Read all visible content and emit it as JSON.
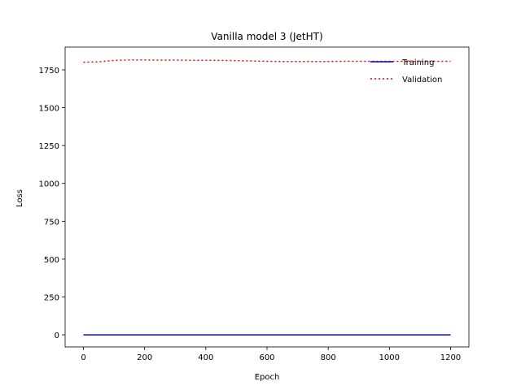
{
  "chart_data": {
    "type": "line",
    "title": "Vanilla model 3 (JetHT)",
    "xlabel": "Epoch",
    "ylabel": "Loss",
    "xlim": [
      -60,
      1260
    ],
    "ylim": [
      -80,
      1900
    ],
    "xticks": [
      0,
      200,
      400,
      600,
      800,
      1000,
      1200
    ],
    "yticks": [
      0,
      250,
      500,
      750,
      1000,
      1250,
      1500,
      1750
    ],
    "grid": false,
    "legend_position": "top-right",
    "series": [
      {
        "name": "Training",
        "color": "#0000ff",
        "style": "solid",
        "x": [
          0,
          100,
          200,
          300,
          400,
          500,
          600,
          700,
          800,
          900,
          1000,
          1100,
          1200
        ],
        "y": [
          0,
          0,
          0,
          0,
          0,
          0,
          0,
          0,
          0,
          0,
          0,
          0,
          0
        ]
      },
      {
        "name": "Validation",
        "color": "#ff0000",
        "style": "dotted",
        "x": [
          0,
          50,
          100,
          150,
          200,
          250,
          300,
          350,
          400,
          450,
          500,
          550,
          600,
          650,
          700,
          750,
          800,
          850,
          900,
          950,
          1000,
          1050,
          1100,
          1150,
          1200
        ],
        "y": [
          1800,
          1803,
          1812,
          1815,
          1815,
          1814,
          1814,
          1813,
          1813,
          1812,
          1811,
          1808,
          1806,
          1805,
          1805,
          1805,
          1805,
          1806,
          1806,
          1806,
          1806,
          1806,
          1806,
          1806,
          1806
        ]
      }
    ]
  }
}
